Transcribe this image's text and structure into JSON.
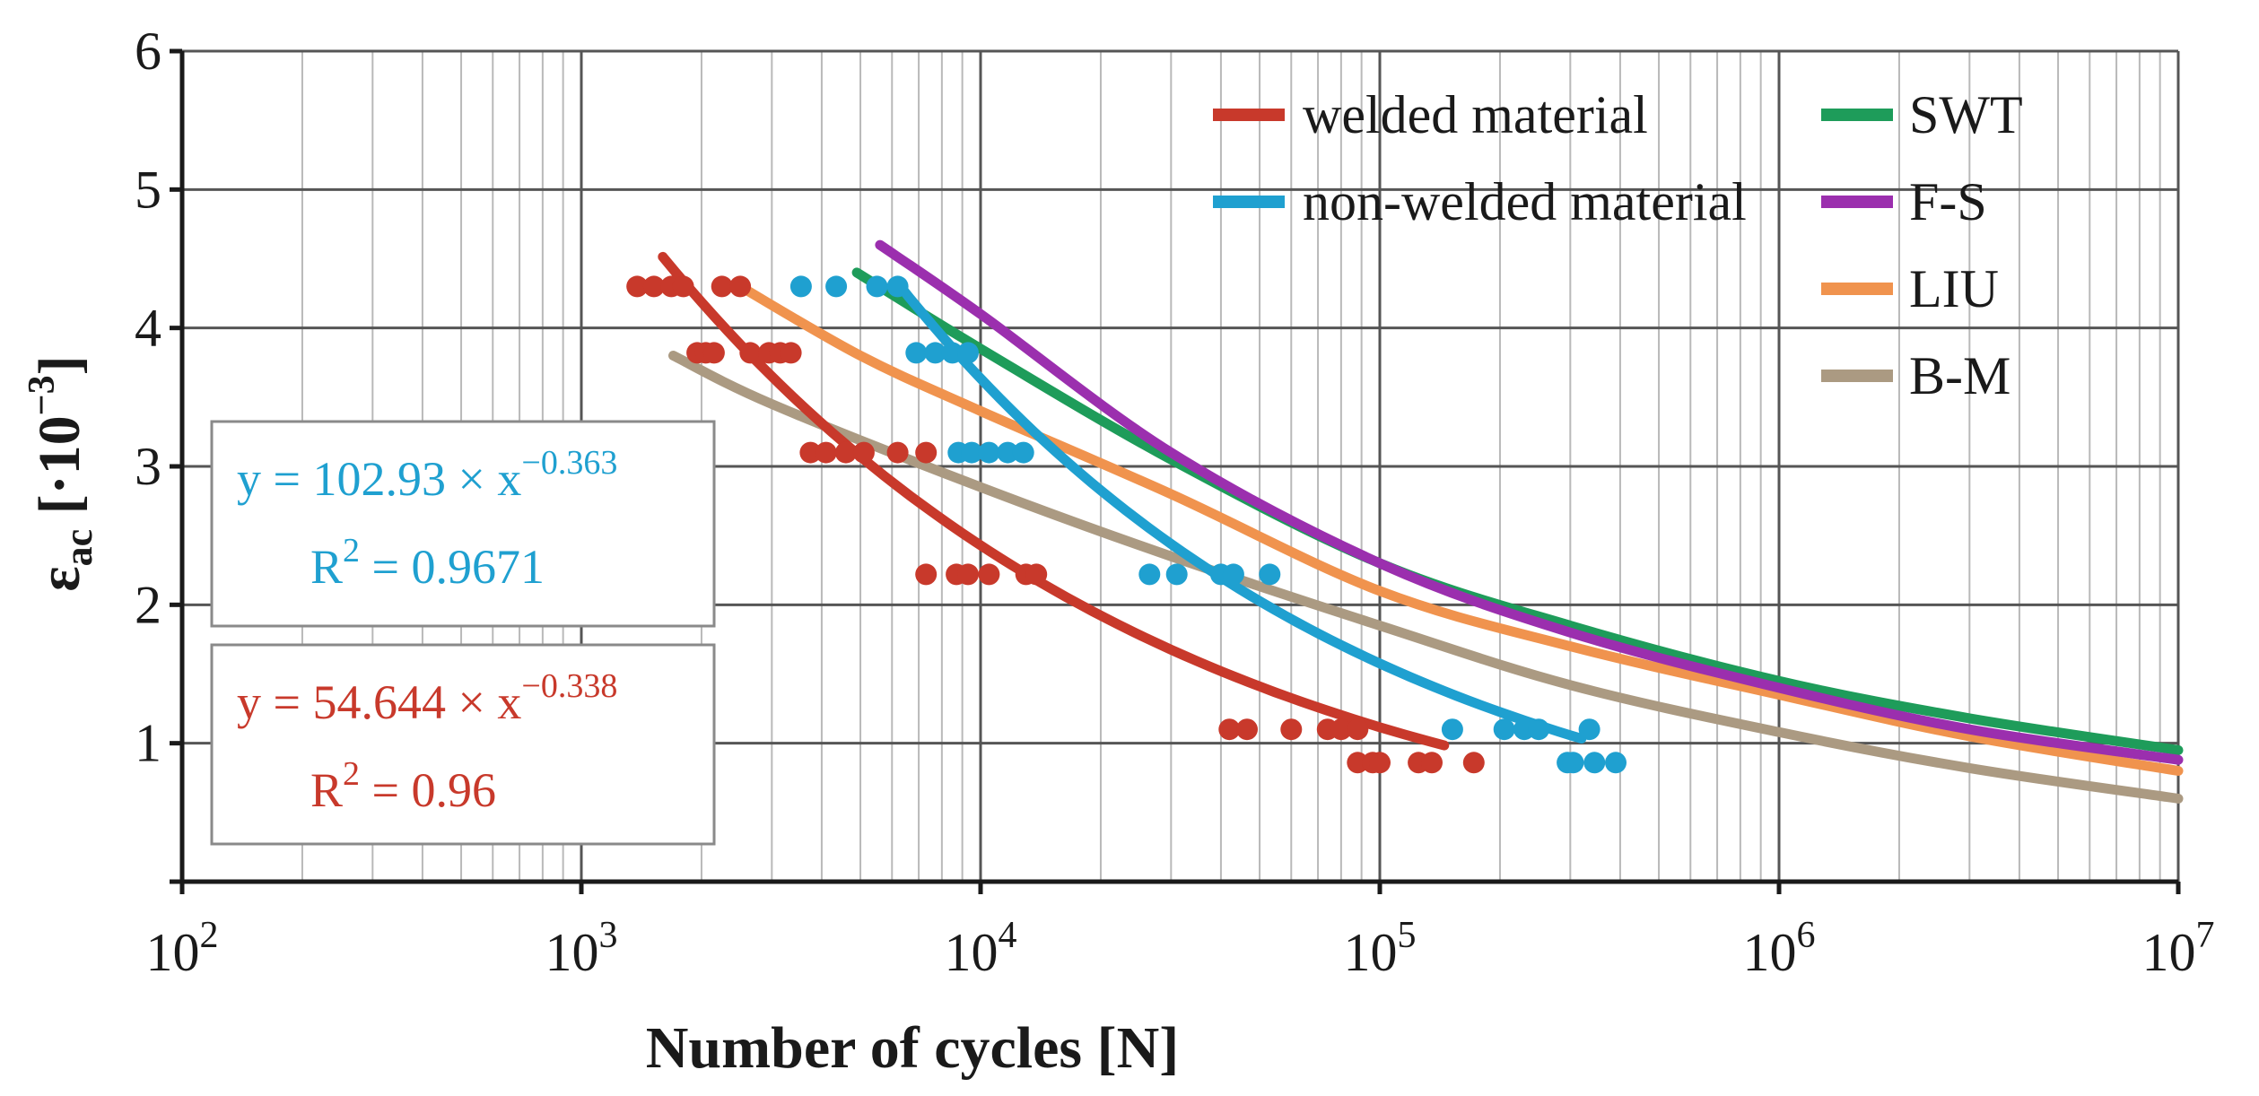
{
  "chart_data": {
    "type": "scatter",
    "xlabel": "Number of cycles [N]",
    "ylabel": {
      "base": "ε",
      "subscript": "ac",
      "unit": " [·10",
      "exp": "−3",
      "close": "]"
    },
    "xscale": "log",
    "xlim": [
      100,
      10000000
    ],
    "ylim": [
      0,
      6
    ],
    "x_ticks": [
      {
        "base": "10",
        "exp": "2",
        "value": 100
      },
      {
        "base": "10",
        "exp": "3",
        "value": 1000
      },
      {
        "base": "10",
        "exp": "4",
        "value": 10000
      },
      {
        "base": "10",
        "exp": "5",
        "value": 100000
      },
      {
        "base": "10",
        "exp": "6",
        "value": 1000000
      },
      {
        "base": "10",
        "exp": "7",
        "value": 10000000
      }
    ],
    "y_ticks": [
      "1",
      "2",
      "3",
      "4",
      "5",
      "6"
    ],
    "grid": true,
    "legend": {
      "placement": "top-right",
      "columns": [
        [
          {
            "label": "welded material",
            "color": "#c8392b"
          },
          {
            "label": "non-welded material",
            "color": "#1fa0d0"
          }
        ],
        [
          {
            "label": "SWT",
            "color": "#1e9c5a"
          },
          {
            "label": "F-S",
            "color": "#9b2fae"
          },
          {
            "label": "LIU",
            "color": "#f0934e"
          },
          {
            "label": "B-M",
            "color": "#ab9a82"
          }
        ]
      ]
    },
    "annotations": [
      {
        "name": "non-welded-equation",
        "color": "#1fa0d0",
        "eq_prefix": "y = 102.93 × x",
        "eq_exp": "−0.363",
        "r2_prefix": "R",
        "r2_exp": "2",
        "r2_value": " = 0.9671"
      },
      {
        "name": "welded-equation",
        "color": "#c8392b",
        "eq_prefix": "y = 54.644 × x",
        "eq_exp": "−0.338",
        "r2_prefix": "R",
        "r2_exp": "2",
        "r2_value": " = 0.96"
      }
    ],
    "series": [
      {
        "name": "welded material",
        "kind": "points",
        "color": "#c8392b",
        "points": [
          [
            1380,
            4.3
          ],
          [
            1520,
            4.3
          ],
          [
            1680,
            4.3
          ],
          [
            1800,
            4.3
          ],
          [
            2250,
            4.3
          ],
          [
            2500,
            4.3
          ],
          [
            1950,
            3.82
          ],
          [
            2050,
            3.82
          ],
          [
            2150,
            3.82
          ],
          [
            2650,
            3.82
          ],
          [
            2950,
            3.82
          ],
          [
            3150,
            3.82
          ],
          [
            3350,
            3.82
          ],
          [
            3750,
            3.1
          ],
          [
            4100,
            3.1
          ],
          [
            4600,
            3.1
          ],
          [
            5100,
            3.1
          ],
          [
            6200,
            3.1
          ],
          [
            7300,
            3.1
          ],
          [
            7300,
            2.22
          ],
          [
            8700,
            2.22
          ],
          [
            9300,
            2.22
          ],
          [
            10500,
            2.22
          ],
          [
            13000,
            2.22
          ],
          [
            13800,
            2.22
          ],
          [
            42000,
            1.1
          ],
          [
            46500,
            1.1
          ],
          [
            60000,
            1.1
          ],
          [
            74000,
            1.1
          ],
          [
            80000,
            1.1
          ],
          [
            88000,
            1.1
          ],
          [
            88000,
            0.86
          ],
          [
            96000,
            0.86
          ],
          [
            100000,
            0.86
          ],
          [
            125000,
            0.86
          ],
          [
            135000,
            0.86
          ],
          [
            172000,
            0.86
          ]
        ]
      },
      {
        "name": "non-welded material",
        "kind": "points",
        "color": "#1fa0d0",
        "points": [
          [
            3550,
            4.3
          ],
          [
            4350,
            4.3
          ],
          [
            5500,
            4.3
          ],
          [
            6200,
            4.3
          ],
          [
            6900,
            3.82
          ],
          [
            7700,
            3.82
          ],
          [
            8500,
            3.82
          ],
          [
            9300,
            3.82
          ],
          [
            8800,
            3.1
          ],
          [
            9500,
            3.1
          ],
          [
            10500,
            3.1
          ],
          [
            11700,
            3.1
          ],
          [
            12800,
            3.1
          ],
          [
            26500,
            2.22
          ],
          [
            31000,
            2.22
          ],
          [
            40000,
            2.22
          ],
          [
            43000,
            2.22
          ],
          [
            53000,
            2.22
          ],
          [
            152000,
            1.1
          ],
          [
            205000,
            1.1
          ],
          [
            230000,
            1.1
          ],
          [
            250000,
            1.1
          ],
          [
            335000,
            1.1
          ],
          [
            295000,
            0.86
          ],
          [
            305000,
            0.86
          ],
          [
            345000,
            0.86
          ],
          [
            390000,
            0.86
          ]
        ]
      },
      {
        "name": "welded material",
        "kind": "fit",
        "color": "#c8392b",
        "a": 54.644,
        "b": -0.338,
        "x_range": [
          1600,
          145000
        ]
      },
      {
        "name": "non-welded material",
        "kind": "fit",
        "color": "#1fa0d0",
        "a": 102.93,
        "b": -0.363,
        "x_range": [
          6200,
          320000
        ]
      },
      {
        "name": "SWT",
        "kind": "curve",
        "color": "#1e9c5a",
        "points": [
          [
            4900,
            4.4
          ],
          [
            10000,
            3.85
          ],
          [
            30000,
            3.05
          ],
          [
            100000,
            2.3
          ],
          [
            300000,
            1.85
          ],
          [
            1000000,
            1.45
          ],
          [
            3000000,
            1.18
          ],
          [
            10000000,
            0.95
          ]
        ]
      },
      {
        "name": "F-S",
        "kind": "curve",
        "color": "#9b2fae",
        "points": [
          [
            5600,
            4.6
          ],
          [
            10000,
            4.1
          ],
          [
            30000,
            3.1
          ],
          [
            100000,
            2.3
          ],
          [
            300000,
            1.8
          ],
          [
            1000000,
            1.4
          ],
          [
            3000000,
            1.1
          ],
          [
            10000000,
            0.88
          ]
        ]
      },
      {
        "name": "LIU",
        "kind": "curve",
        "color": "#f0934e",
        "points": [
          [
            2500,
            4.3
          ],
          [
            5000,
            3.8
          ],
          [
            10000,
            3.4
          ],
          [
            30000,
            2.8
          ],
          [
            100000,
            2.1
          ],
          [
            300000,
            1.7
          ],
          [
            1000000,
            1.35
          ],
          [
            3000000,
            1.05
          ],
          [
            10000000,
            0.8
          ]
        ]
      },
      {
        "name": "B-M",
        "kind": "curve",
        "color": "#ab9a82",
        "points": [
          [
            1700,
            3.8
          ],
          [
            3000,
            3.45
          ],
          [
            10000,
            2.85
          ],
          [
            30000,
            2.35
          ],
          [
            100000,
            1.85
          ],
          [
            300000,
            1.42
          ],
          [
            1000000,
            1.08
          ],
          [
            3000000,
            0.82
          ],
          [
            10000000,
            0.6
          ]
        ]
      }
    ]
  }
}
